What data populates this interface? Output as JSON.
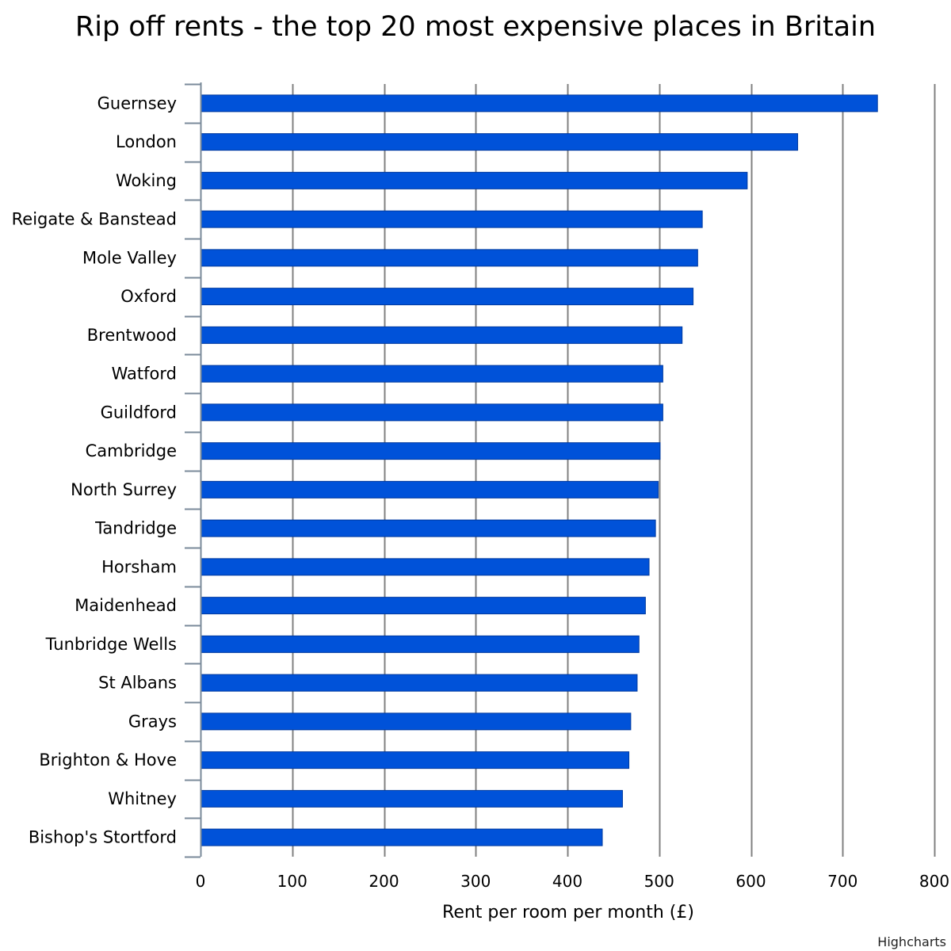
{
  "chart_data": {
    "type": "bar",
    "orientation": "horizontal",
    "title": "Rip off rents - the top 20 most expensive places in Britain",
    "xlabel": "Rent per room per month (£)",
    "ylabel": "",
    "xlim": [
      0,
      800
    ],
    "ticks": [
      0,
      100,
      200,
      300,
      400,
      500,
      600,
      700,
      800
    ],
    "grid": true,
    "legend": "none",
    "categories": [
      "Guernsey",
      "London",
      "Woking",
      "Reigate & Banstead",
      "Mole Valley",
      "Oxford",
      "Brentwood",
      "Watford",
      "Guildford",
      "Cambridge",
      "North Surrey",
      "Tandridge",
      "Horsham",
      "Maidenhead",
      "Tunbridge Wells",
      "St Albans",
      "Grays",
      "Brighton & Hove",
      "Whitney",
      "Bishop's Stortford"
    ],
    "values": [
      738,
      651,
      596,
      547,
      542,
      537,
      525,
      504,
      504,
      501,
      499,
      496,
      489,
      485,
      478,
      476,
      469,
      467,
      460,
      438
    ],
    "bar_color": "#0052d9",
    "gridline_color": "#808080",
    "credits": "Highcharts"
  }
}
